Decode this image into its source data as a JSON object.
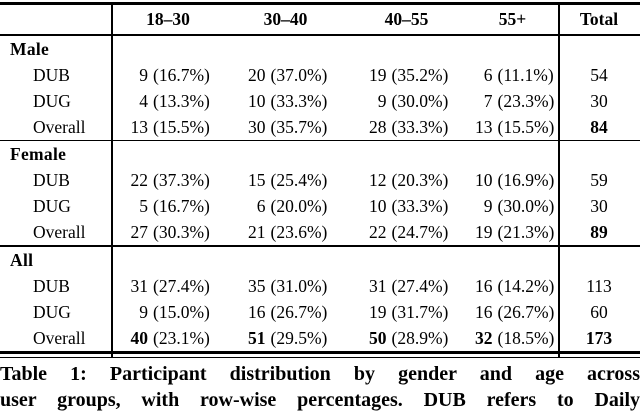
{
  "table": {
    "header": {
      "corner": "",
      "age_groups": [
        "18–30",
        "30–40",
        "40–55",
        "55+"
      ],
      "total": "Total"
    },
    "sections": [
      {
        "label": "Male",
        "rows": [
          {
            "label": "DUB",
            "cells": [
              {
                "count": "9",
                "pct": "(16.7%)"
              },
              {
                "count": "20",
                "pct": "(37.0%)"
              },
              {
                "count": "19",
                "pct": "(35.2%)"
              },
              {
                "count": "6",
                "pct": "(11.1%)"
              }
            ],
            "total": "54",
            "bold_counts": false,
            "bold_total": false
          },
          {
            "label": "DUG",
            "cells": [
              {
                "count": "4",
                "pct": "(13.3%)"
              },
              {
                "count": "10",
                "pct": "(33.3%)"
              },
              {
                "count": "9",
                "pct": "(30.0%)"
              },
              {
                "count": "7",
                "pct": "(23.3%)"
              }
            ],
            "total": "30",
            "bold_counts": false,
            "bold_total": false
          },
          {
            "label": "Overall",
            "cells": [
              {
                "count": "13",
                "pct": "(15.5%)"
              },
              {
                "count": "30",
                "pct": "(35.7%)"
              },
              {
                "count": "28",
                "pct": "(33.3%)"
              },
              {
                "count": "13",
                "pct": "(15.5%)"
              }
            ],
            "total": "84",
            "bold_counts": false,
            "bold_total": true
          }
        ]
      },
      {
        "label": "Female",
        "rows": [
          {
            "label": "DUB",
            "cells": [
              {
                "count": "22",
                "pct": "(37.3%)"
              },
              {
                "count": "15",
                "pct": "(25.4%)"
              },
              {
                "count": "12",
                "pct": "(20.3%)"
              },
              {
                "count": "10",
                "pct": "(16.9%)"
              }
            ],
            "total": "59",
            "bold_counts": false,
            "bold_total": false
          },
          {
            "label": "DUG",
            "cells": [
              {
                "count": "5",
                "pct": "(16.7%)"
              },
              {
                "count": "6",
                "pct": "(20.0%)"
              },
              {
                "count": "10",
                "pct": "(33.3%)"
              },
              {
                "count": "9",
                "pct": "(30.0%)"
              }
            ],
            "total": "30",
            "bold_counts": false,
            "bold_total": false
          },
          {
            "label": "Overall",
            "cells": [
              {
                "count": "27",
                "pct": "(30.3%)"
              },
              {
                "count": "21",
                "pct": "(23.6%)"
              },
              {
                "count": "22",
                "pct": "(24.7%)"
              },
              {
                "count": "19",
                "pct": "(21.3%)"
              }
            ],
            "total": "89",
            "bold_counts": false,
            "bold_total": true
          }
        ]
      },
      {
        "label": "All",
        "rows": [
          {
            "label": "DUB",
            "cells": [
              {
                "count": "31",
                "pct": "(27.4%)"
              },
              {
                "count": "35",
                "pct": "(31.0%)"
              },
              {
                "count": "31",
                "pct": "(27.4%)"
              },
              {
                "count": "16",
                "pct": "(14.2%)"
              }
            ],
            "total": "113",
            "bold_counts": false,
            "bold_total": false
          },
          {
            "label": "DUG",
            "cells": [
              {
                "count": "9",
                "pct": "(15.0%)"
              },
              {
                "count": "16",
                "pct": "(26.7%)"
              },
              {
                "count": "19",
                "pct": "(31.7%)"
              },
              {
                "count": "16",
                "pct": "(26.7%)"
              }
            ],
            "total": "60",
            "bold_counts": false,
            "bold_total": false
          },
          {
            "label": "Overall",
            "cells": [
              {
                "count": "40",
                "pct": "(23.1%)"
              },
              {
                "count": "51",
                "pct": "(29.5%)"
              },
              {
                "count": "50",
                "pct": "(28.9%)"
              },
              {
                "count": "32",
                "pct": "(18.5%)"
              }
            ],
            "total": "173",
            "bold_counts": true,
            "bold_total": true
          }
        ]
      }
    ]
  },
  "caption": {
    "lines": [
      "Table 1: Participant distribution by gender and age across",
      "user groups, with row-wise percentages. DUB refers to Daily"
    ]
  },
  "colors": {
    "ink": "#000000",
    "background": "#ffffff"
  }
}
